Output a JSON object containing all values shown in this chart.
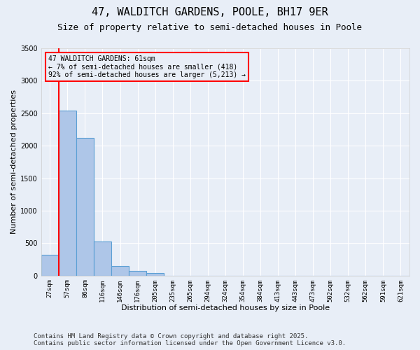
{
  "title_line1": "47, WALDITCH GARDENS, POOLE, BH17 9ER",
  "title_line2": "Size of property relative to semi-detached houses in Poole",
  "xlabel": "Distribution of semi-detached houses by size in Poole",
  "ylabel": "Number of semi-detached properties",
  "bar_color": "#aec6e8",
  "bar_edge_color": "#5a9fd4",
  "vline_color": "red",
  "annotation_title": "47 WALDITCH GARDENS: 61sqm",
  "annotation_line2": "← 7% of semi-detached houses are smaller (418)",
  "annotation_line3": "92% of semi-detached houses are larger (5,213) →",
  "annotation_box_color": "red",
  "background_color": "#e8eef7",
  "ylim": [
    0,
    3500
  ],
  "yticks": [
    0,
    500,
    1000,
    1500,
    2000,
    2500,
    3000,
    3500
  ],
  "categories": [
    "27sqm",
    "57sqm",
    "86sqm",
    "116sqm",
    "146sqm",
    "176sqm",
    "205sqm",
    "235sqm",
    "265sqm",
    "294sqm",
    "324sqm",
    "354sqm",
    "384sqm",
    "413sqm",
    "443sqm",
    "473sqm",
    "502sqm",
    "532sqm",
    "562sqm",
    "591sqm",
    "621sqm"
  ],
  "values": [
    320,
    2540,
    2120,
    520,
    150,
    70,
    40,
    0,
    0,
    0,
    0,
    0,
    0,
    0,
    0,
    0,
    0,
    0,
    0,
    0,
    0
  ],
  "footer_line1": "Contains HM Land Registry data © Crown copyright and database right 2025.",
  "footer_line2": "Contains public sector information licensed under the Open Government Licence v3.0.",
  "title_fontsize": 11,
  "subtitle_fontsize": 9,
  "axis_label_fontsize": 8,
  "tick_fontsize": 7,
  "footer_fontsize": 6.5
}
